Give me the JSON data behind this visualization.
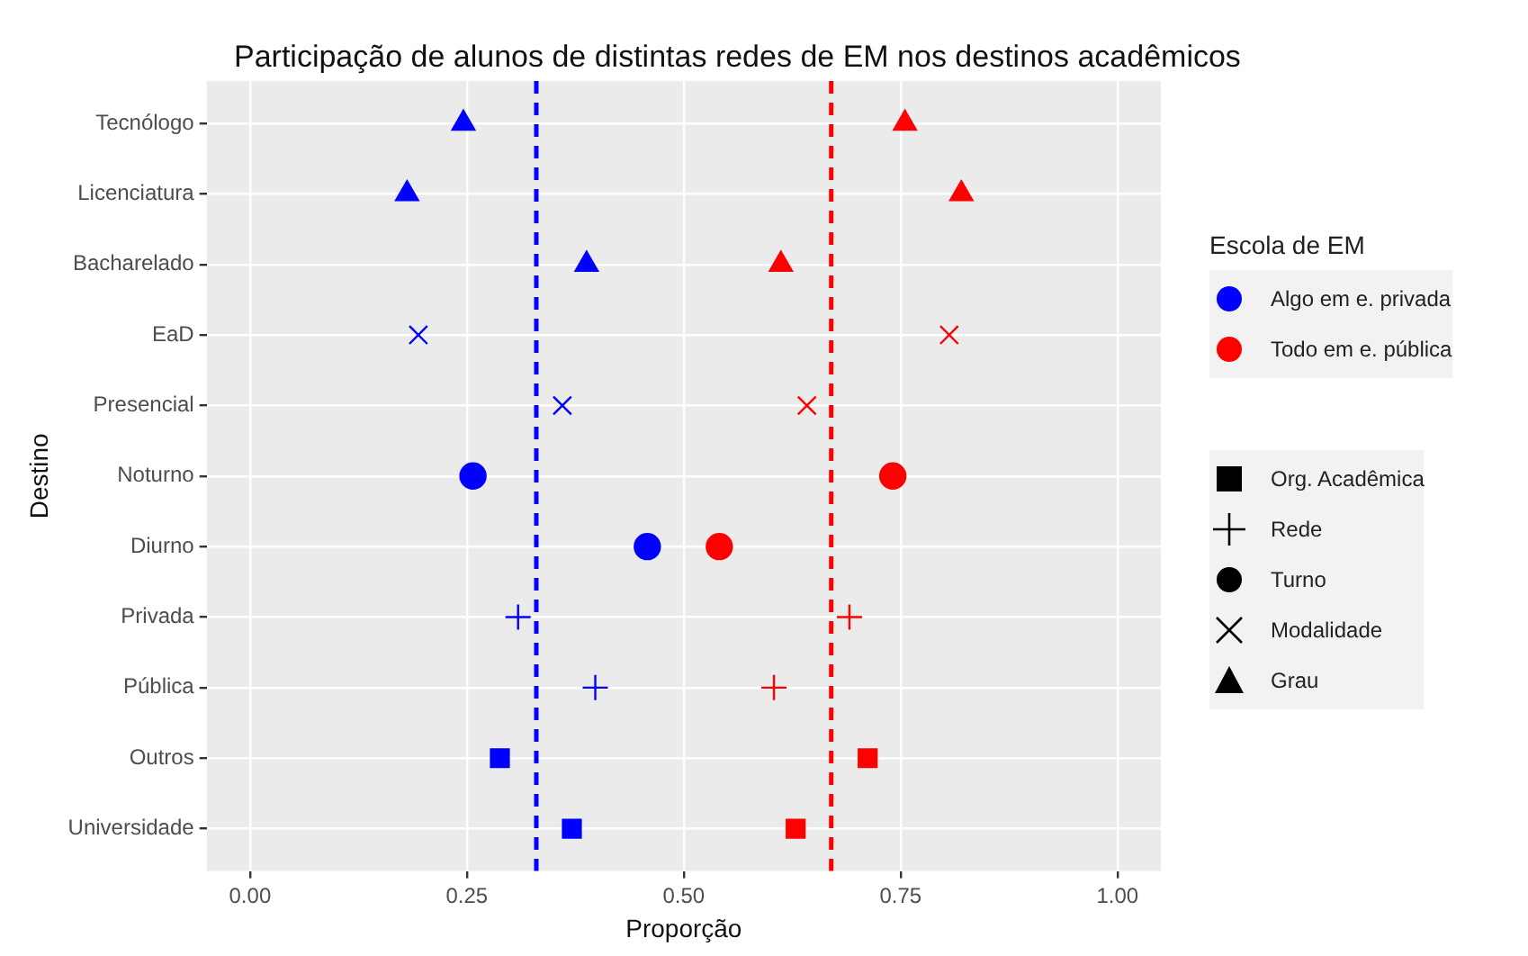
{
  "chart_data": {
    "type": "scatter",
    "title": "Participação de alunos de distintas redes de EM nos destinos acadêmicos",
    "xlabel": "Proporção",
    "ylabel": "Destino",
    "legend_title": "Escola de EM",
    "legend": "right",
    "orientation": "horizontal",
    "categories": [
      "Tecnólogo",
      "Licenciatura",
      "Bacharelado",
      "EaD",
      "Presencial",
      "Noturno",
      "Diurno",
      "Privada",
      "Pública",
      "Outros",
      "Universidade"
    ],
    "series": [
      {
        "name": "Algo em e. privada",
        "color": "#0000ff",
        "marker": [
          "triangle",
          "triangle",
          "triangle",
          "cross",
          "cross",
          "circle",
          "circle",
          "plus",
          "plus",
          "square",
          "square"
        ],
        "values": [
          0.246,
          0.181,
          0.388,
          0.194,
          0.36,
          0.257,
          0.458,
          0.309,
          0.398,
          0.288,
          0.371
        ]
      },
      {
        "name": "Todo em e. pública",
        "color": "#ff0000",
        "marker": [
          "triangle",
          "triangle",
          "triangle",
          "cross",
          "cross",
          "circle",
          "circle",
          "plus",
          "plus",
          "square",
          "square"
        ],
        "values": [
          0.755,
          0.82,
          0.612,
          0.806,
          0.642,
          0.741,
          0.541,
          0.691,
          0.604,
          0.712,
          0.629
        ]
      },
      {
        "name": "Org. Acadêmica",
        "color": "#000000",
        "marker": "square",
        "values": [
          null,
          null,
          null,
          null,
          null,
          null,
          null,
          null,
          null,
          null,
          null
        ]
      },
      {
        "name": "Rede",
        "color": "#000000",
        "marker": "plus",
        "values": [
          null,
          null,
          null,
          null,
          null,
          null,
          null,
          null,
          null,
          null,
          null
        ]
      },
      {
        "name": "Turno",
        "color": "#000000",
        "marker": "circle",
        "values": [
          null,
          null,
          null,
          null,
          null,
          null,
          null,
          null,
          null,
          null,
          null
        ]
      },
      {
        "name": "Modalidade",
        "color": "#000000",
        "marker": "cross",
        "values": [
          null,
          null,
          null,
          null,
          null,
          null,
          null,
          null,
          null,
          null,
          null
        ]
      },
      {
        "name": "Grau",
        "color": "#000000",
        "marker": "triangle",
        "values": [
          null,
          null,
          null,
          null,
          null,
          null,
          null,
          null,
          null,
          null,
          null
        ]
      }
    ],
    "xlim": [
      -0.05,
      1.05
    ],
    "xticks": [
      {
        "value": 0,
        "label": "0.00"
      },
      {
        "value": 0.25,
        "label": "0.25"
      },
      {
        "value": 0.5,
        "label": "0.50"
      },
      {
        "value": 0.75,
        "label": "0.75"
      },
      {
        "value": 1,
        "label": "1.00"
      }
    ],
    "grid": true,
    "ref_lines": [
      {
        "axis": "x",
        "value": 0.33,
        "color": "#0000ff",
        "line_style": "dashed"
      },
      {
        "axis": "x",
        "value": 0.67,
        "color": "#ff0000",
        "line_style": "dashed"
      }
    ]
  }
}
